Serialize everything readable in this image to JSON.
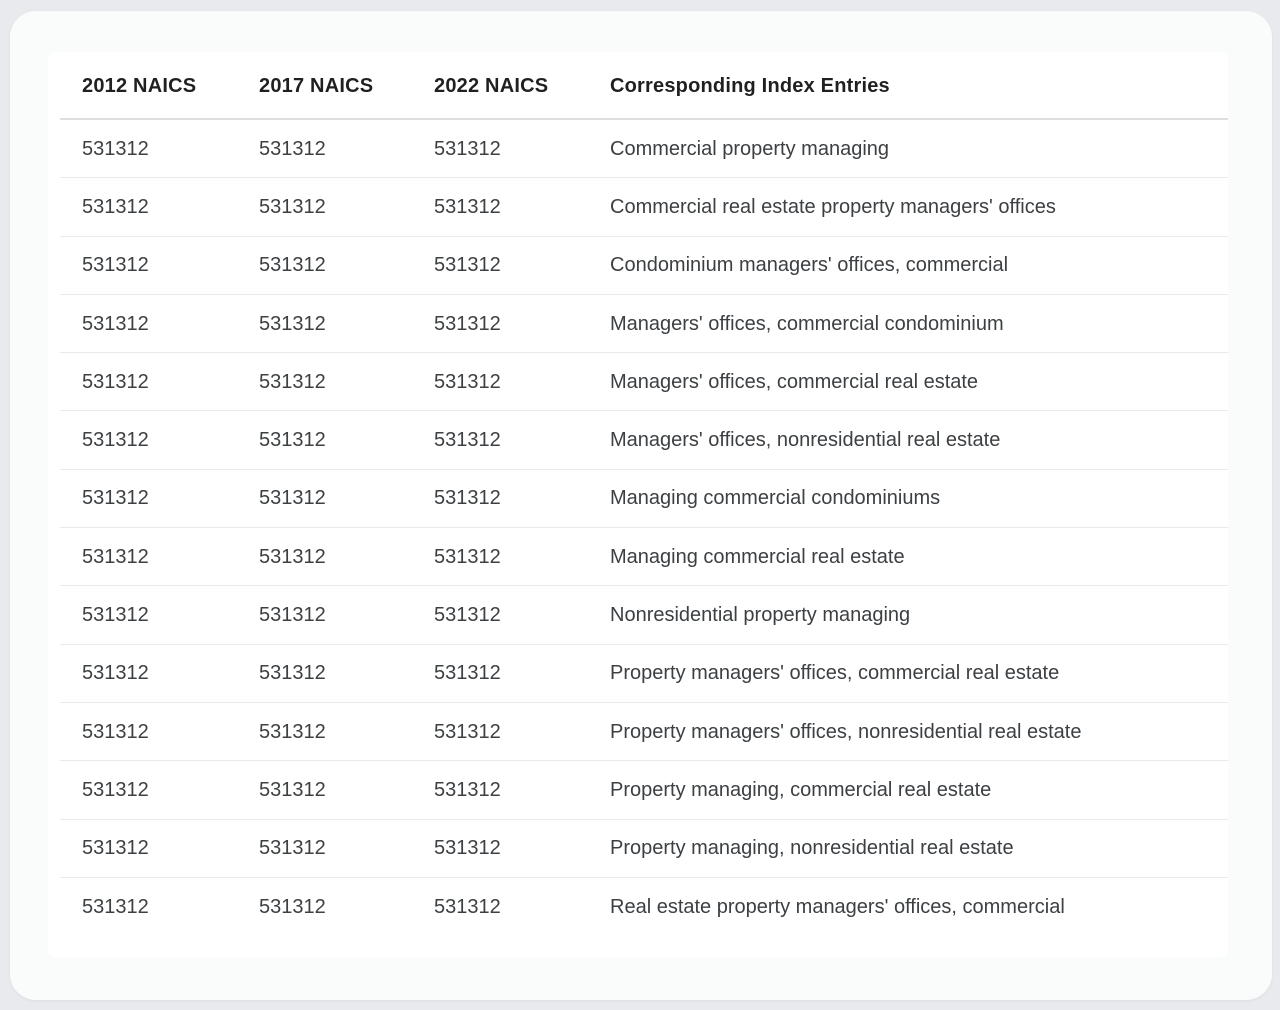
{
  "page": {
    "background_color": "#e8eaed",
    "card_background_color": "#fafbfb",
    "table_background_color": "#ffffff",
    "header_text_color": "#1f2022",
    "cell_text_color": "#3c4043",
    "header_divider_color": "#dcdedf",
    "row_divider_color": "#e8e9ea"
  },
  "table": {
    "headers": [
      "2012 NAICS",
      "2017 NAICS",
      "2022 NAICS",
      "Corresponding Index Entries"
    ],
    "rows": [
      {
        "naics_2012": "531312",
        "naics_2017": "531312",
        "naics_2022": "531312",
        "index_entry": "Commercial property managing"
      },
      {
        "naics_2012": "531312",
        "naics_2017": "531312",
        "naics_2022": "531312",
        "index_entry": "Commercial real estate property managers' offices"
      },
      {
        "naics_2012": "531312",
        "naics_2017": "531312",
        "naics_2022": "531312",
        "index_entry": "Condominium managers' offices, commercial"
      },
      {
        "naics_2012": "531312",
        "naics_2017": "531312",
        "naics_2022": "531312",
        "index_entry": "Managers' offices, commercial condominium"
      },
      {
        "naics_2012": "531312",
        "naics_2017": "531312",
        "naics_2022": "531312",
        "index_entry": "Managers' offices, commercial real estate"
      },
      {
        "naics_2012": "531312",
        "naics_2017": "531312",
        "naics_2022": "531312",
        "index_entry": "Managers' offices, nonresidential real estate"
      },
      {
        "naics_2012": "531312",
        "naics_2017": "531312",
        "naics_2022": "531312",
        "index_entry": "Managing commercial condominiums"
      },
      {
        "naics_2012": "531312",
        "naics_2017": "531312",
        "naics_2022": "531312",
        "index_entry": "Managing commercial real estate"
      },
      {
        "naics_2012": "531312",
        "naics_2017": "531312",
        "naics_2022": "531312",
        "index_entry": "Nonresidential property managing"
      },
      {
        "naics_2012": "531312",
        "naics_2017": "531312",
        "naics_2022": "531312",
        "index_entry": "Property managers' offices, commercial real estate"
      },
      {
        "naics_2012": "531312",
        "naics_2017": "531312",
        "naics_2022": "531312",
        "index_entry": "Property managers' offices, nonresidential real estate"
      },
      {
        "naics_2012": "531312",
        "naics_2017": "531312",
        "naics_2022": "531312",
        "index_entry": "Property managing, commercial real estate"
      },
      {
        "naics_2012": "531312",
        "naics_2017": "531312",
        "naics_2022": "531312",
        "index_entry": "Property managing, nonresidential real estate"
      },
      {
        "naics_2012": "531312",
        "naics_2017": "531312",
        "naics_2022": "531312",
        "index_entry": "Real estate property managers' offices, commercial"
      }
    ]
  }
}
